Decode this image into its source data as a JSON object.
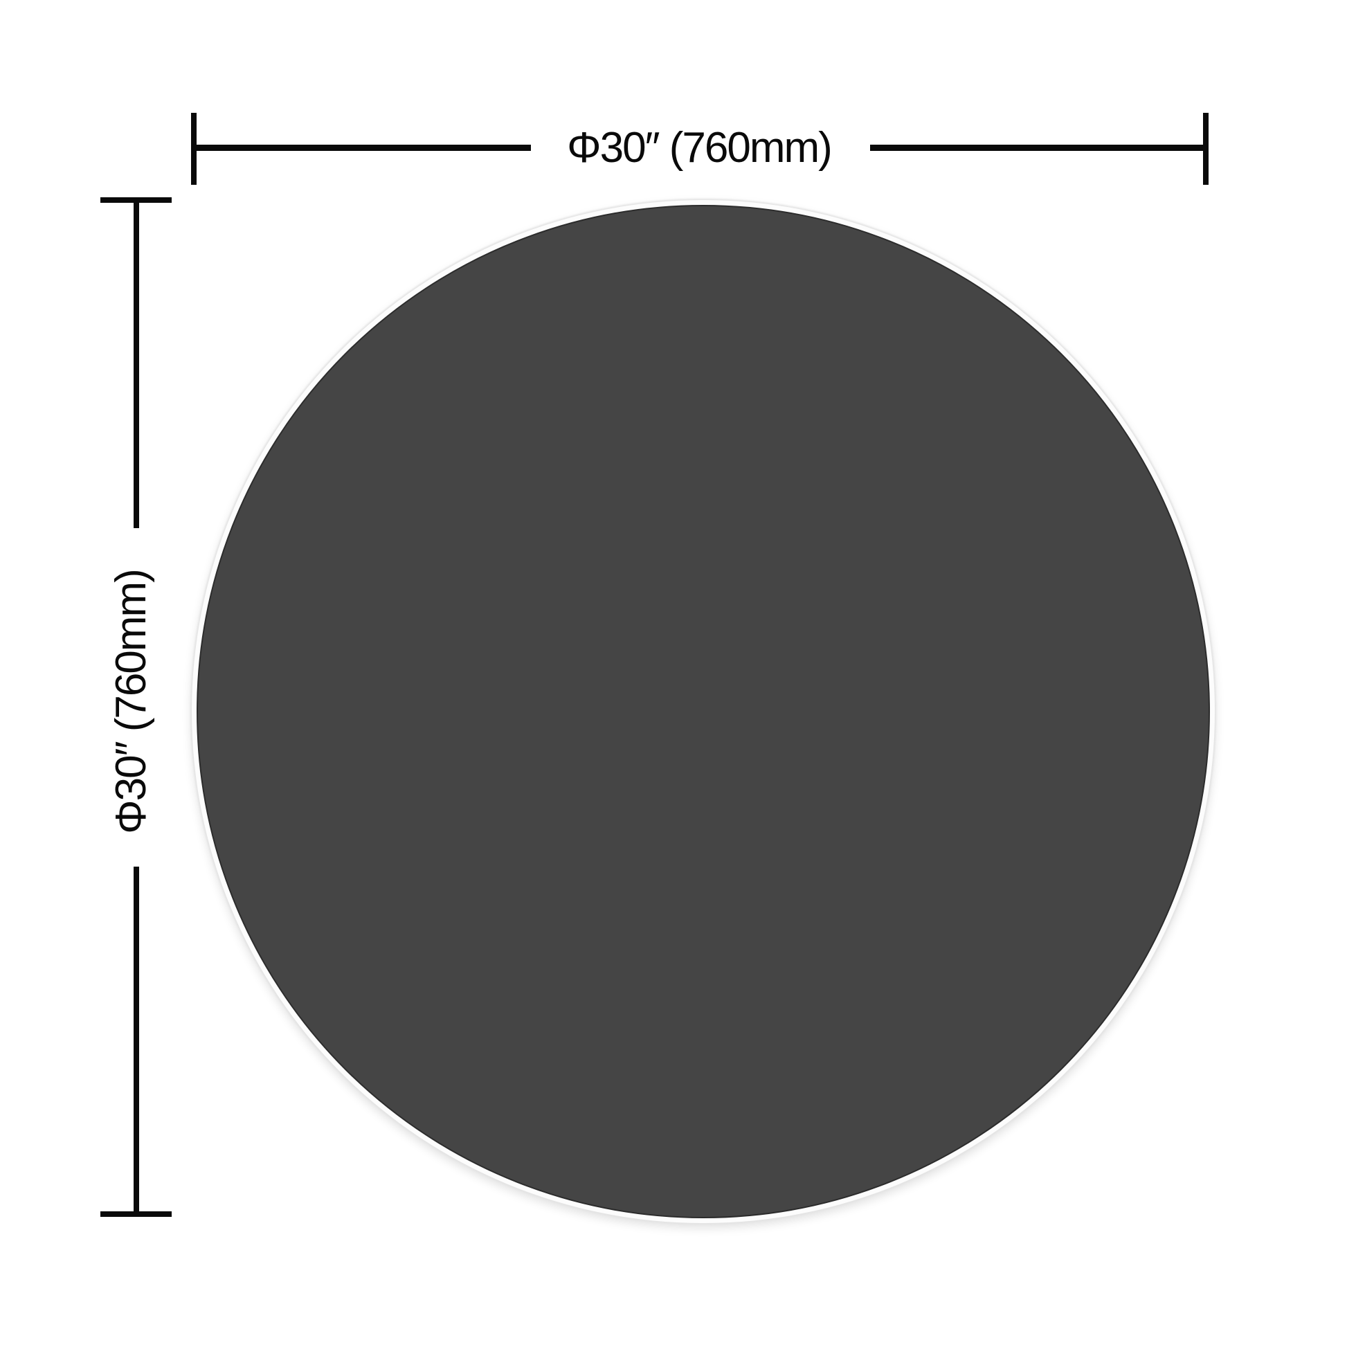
{
  "page": {
    "background_color": "#ffffff",
    "description": "Round table top dimension diagram"
  },
  "diagram": {
    "line_color": "#0a0a0a",
    "text_color": "#0a0a0a",
    "circle": {
      "shape": "circle",
      "fill_color": "#454545",
      "edge_color": "#2c2c2c",
      "rim_color": "#fcfcfc",
      "shadow_color": "#e4e4e4"
    },
    "dimensions": {
      "horizontal": {
        "label": "Φ30″ (760mm)",
        "diameter_inches": "30″",
        "diameter_mm": "760mm",
        "orientation": "horizontal"
      },
      "vertical": {
        "label": "Φ30″ (760mm)",
        "diameter_inches": "30″",
        "diameter_mm": "760mm",
        "orientation": "vertical"
      }
    }
  }
}
